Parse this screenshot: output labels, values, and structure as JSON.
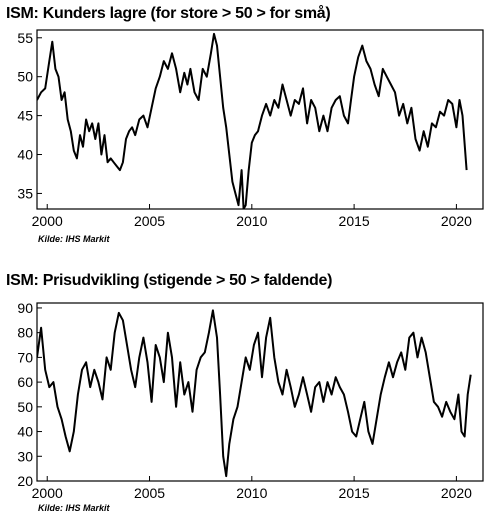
{
  "chart_data": [
    {
      "type": "line",
      "title": "ISM: Kunders lagre (for store > 50 > for små)",
      "source": "Kilde: IHS Markit",
      "xlim": [
        1999.5,
        2021.3
      ],
      "ylim": [
        33,
        56
      ],
      "x_ticks": [
        2000,
        2005,
        2010,
        2015,
        2020
      ],
      "x_tick_labels": [
        "2000",
        "2005",
        "2010",
        "2015",
        "2020"
      ],
      "y_ticks": [
        35,
        40,
        45,
        50,
        55
      ],
      "y_tick_labels": [
        "35",
        "40",
        "45",
        "50",
        "55"
      ],
      "grid": false,
      "color": "#000000",
      "series": [
        {
          "x": [
            1999.5,
            1999.7,
            1999.9,
            2000.1,
            2000.25,
            2000.4,
            2000.55,
            2000.7,
            2000.85,
            2001.0,
            2001.15,
            2001.3,
            2001.45,
            2001.6,
            2001.75,
            2001.9,
            2002.05,
            2002.2,
            2002.35,
            2002.5,
            2002.65,
            2002.8,
            2002.95,
            2003.1,
            2003.25,
            2003.4,
            2003.55,
            2003.7,
            2003.85,
            2004.0,
            2004.15,
            2004.3,
            2004.5,
            2004.7,
            2004.9,
            2005.1,
            2005.3,
            2005.5,
            2005.7,
            2005.9,
            2006.1,
            2006.3,
            2006.5,
            2006.7,
            2006.85,
            2007.0,
            2007.2,
            2007.4,
            2007.6,
            2007.8,
            2008.0,
            2008.15,
            2008.3,
            2008.45,
            2008.6,
            2008.75,
            2008.9,
            2009.05,
            2009.2,
            2009.35,
            2009.5,
            2009.6,
            2009.7,
            2009.85,
            2010.0,
            2010.15,
            2010.3,
            2010.5,
            2010.7,
            2010.9,
            2011.1,
            2011.3,
            2011.5,
            2011.7,
            2011.9,
            2012.1,
            2012.3,
            2012.5,
            2012.7,
            2012.9,
            2013.1,
            2013.3,
            2013.5,
            2013.7,
            2013.9,
            2014.1,
            2014.3,
            2014.5,
            2014.7,
            2014.85,
            2015.0,
            2015.2,
            2015.4,
            2015.6,
            2015.8,
            2016.0,
            2016.2,
            2016.4,
            2016.6,
            2016.8,
            2017.0,
            2017.2,
            2017.4,
            2017.6,
            2017.8,
            2018.0,
            2018.2,
            2018.4,
            2018.6,
            2018.8,
            2019.0,
            2019.2,
            2019.4,
            2019.6,
            2019.8,
            2020.0,
            2020.15,
            2020.3,
            2020.5
          ],
          "y": [
            47,
            48,
            48.5,
            52,
            54.5,
            51,
            50,
            47,
            48,
            44.5,
            43,
            40.5,
            39.5,
            42.5,
            41,
            44.5,
            43,
            44,
            42,
            44,
            40,
            42.5,
            39,
            39.5,
            39,
            38.5,
            38,
            39,
            42,
            43,
            43.5,
            42.5,
            44.5,
            45,
            43.5,
            46,
            48.5,
            50,
            52,
            51,
            53,
            51,
            48,
            50.5,
            49,
            51,
            48,
            47,
            51,
            50,
            53,
            55.5,
            54,
            50,
            46,
            43.5,
            40,
            36.5,
            35,
            33.5,
            38,
            33,
            33.5,
            38,
            41.5,
            42.5,
            43,
            45,
            46.5,
            45,
            47,
            46,
            49,
            47,
            45,
            47,
            46.5,
            48.5,
            44,
            47,
            46,
            43,
            45,
            43,
            46,
            47,
            47.5,
            45,
            44,
            47,
            50,
            52.5,
            54,
            52,
            51,
            49,
            47.5,
            51,
            50,
            49,
            48,
            45,
            46.5,
            44,
            46,
            42,
            40.5,
            43,
            41,
            44,
            43.5,
            45.5,
            45,
            47,
            46.5,
            43.5,
            47,
            45,
            38
          ]
        }
      ]
    },
    {
      "type": "line",
      "title": "ISM: Prisudvikling (stigende > 50 > faldende)",
      "source": "Kilde: IHS Markit",
      "xlim": [
        1999.5,
        2021.3
      ],
      "ylim": [
        20,
        92
      ],
      "x_ticks": [
        2000,
        2005,
        2010,
        2015,
        2020
      ],
      "x_tick_labels": [
        "2000",
        "2005",
        "2010",
        "2015",
        "2020"
      ],
      "y_ticks": [
        20,
        30,
        40,
        50,
        60,
        70,
        80,
        90
      ],
      "y_tick_labels": [
        "20",
        "30",
        "40",
        "50",
        "60",
        "70",
        "80",
        "90"
      ],
      "grid": false,
      "color": "#000000",
      "series": [
        {
          "x": [
            1999.5,
            1999.7,
            1999.9,
            2000.1,
            2000.3,
            2000.5,
            2000.7,
            2000.9,
            2001.1,
            2001.3,
            2001.5,
            2001.7,
            2001.9,
            2002.1,
            2002.3,
            2002.5,
            2002.7,
            2002.9,
            2003.1,
            2003.3,
            2003.5,
            2003.7,
            2003.9,
            2004.1,
            2004.3,
            2004.5,
            2004.7,
            2004.9,
            2005.1,
            2005.3,
            2005.5,
            2005.7,
            2005.9,
            2006.1,
            2006.3,
            2006.5,
            2006.7,
            2006.9,
            2007.1,
            2007.3,
            2007.5,
            2007.7,
            2007.9,
            2008.1,
            2008.3,
            2008.45,
            2008.6,
            2008.75,
            2008.9,
            2009.1,
            2009.3,
            2009.5,
            2009.7,
            2009.9,
            2010.1,
            2010.3,
            2010.5,
            2010.7,
            2010.9,
            2011.1,
            2011.3,
            2011.5,
            2011.7,
            2011.9,
            2012.1,
            2012.3,
            2012.5,
            2012.7,
            2012.9,
            2013.1,
            2013.3,
            2013.5,
            2013.7,
            2013.9,
            2014.1,
            2014.3,
            2014.5,
            2014.7,
            2014.9,
            2015.1,
            2015.3,
            2015.5,
            2015.7,
            2015.9,
            2016.1,
            2016.3,
            2016.5,
            2016.7,
            2016.9,
            2017.1,
            2017.3,
            2017.5,
            2017.7,
            2017.9,
            2018.1,
            2018.3,
            2018.5,
            2018.7,
            2018.9,
            2019.1,
            2019.3,
            2019.5,
            2019.7,
            2019.9,
            2020.1,
            2020.25,
            2020.4,
            2020.55,
            2020.7
          ],
          "y": [
            70,
            82,
            65,
            58,
            60,
            50,
            45,
            38,
            32,
            40,
            55,
            65,
            68,
            58,
            65,
            60,
            53,
            70,
            65,
            80,
            88,
            85,
            75,
            65,
            58,
            70,
            78,
            68,
            52,
            75,
            70,
            60,
            80,
            70,
            50,
            68,
            55,
            60,
            48,
            65,
            70,
            72,
            80,
            89,
            78,
            55,
            30,
            22,
            35,
            45,
            50,
            60,
            70,
            65,
            75,
            80,
            62,
            78,
            86,
            70,
            60,
            55,
            65,
            58,
            50,
            55,
            62,
            55,
            48,
            58,
            60,
            52,
            60,
            55,
            62,
            58,
            55,
            48,
            40,
            38,
            45,
            52,
            40,
            35,
            45,
            55,
            62,
            68,
            62,
            68,
            72,
            65,
            78,
            80,
            70,
            78,
            72,
            62,
            52,
            50,
            46,
            52,
            48,
            45,
            55,
            40,
            38,
            55,
            63
          ]
        }
      ]
    }
  ]
}
